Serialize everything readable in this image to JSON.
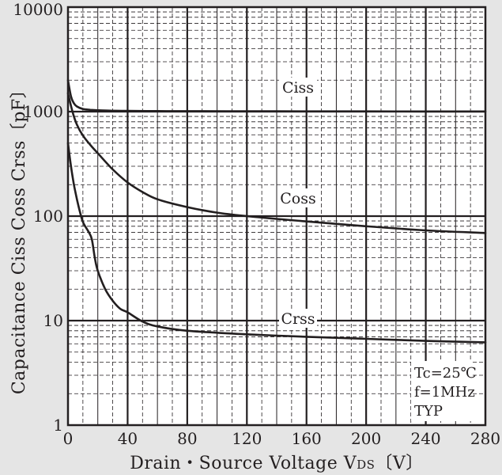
{
  "chart_data": {
    "type": "line",
    "xlabel": "Drain・Source Voltage  V",
    "xlabel_sub": "DS",
    "xlabel_unit": "〔V〕",
    "ylabel": "Capacitance  Ciss Coss Crss〔pF〕",
    "xlim": [
      0,
      280
    ],
    "ylim": [
      1,
      10000
    ],
    "y_scale": "log",
    "grid": true,
    "x_ticks": [
      "0",
      "40",
      "80",
      "120",
      "160",
      "200",
      "240",
      "280"
    ],
    "y_ticks": [
      "1",
      "10",
      "100",
      "1000",
      "10000"
    ],
    "series": [
      {
        "name": "Ciss",
        "x": [
          0,
          2,
          4,
          6,
          10,
          15,
          20,
          30,
          40,
          60,
          80,
          120,
          160,
          200,
          240,
          280
        ],
        "y": [
          2000,
          1400,
          1200,
          1120,
          1060,
          1040,
          1030,
          1020,
          1015,
          1012,
          1010,
          1008,
          1006,
          1005,
          1004,
          1003
        ]
      },
      {
        "name": "Coss",
        "x": [
          0,
          3,
          6,
          10,
          15,
          20,
          30,
          40,
          50,
          60,
          80,
          100,
          120,
          140,
          160,
          200,
          240,
          280
        ],
        "y": [
          1500,
          1000,
          750,
          590,
          480,
          400,
          280,
          210,
          170,
          145,
          122,
          108,
          100,
          94,
          89,
          80,
          73,
          69
        ]
      },
      {
        "name": "Crss",
        "x": [
          0,
          2,
          4,
          6,
          8,
          10,
          12,
          14,
          16,
          18,
          20,
          25,
          30,
          35,
          40,
          50,
          60,
          80,
          120,
          160,
          200,
          240,
          280
        ],
        "y": [
          500,
          300,
          200,
          145,
          110,
          88,
          78,
          70,
          60,
          40,
          30,
          20,
          15.5,
          13,
          12,
          9.8,
          8.8,
          8,
          7.4,
          7,
          6.7,
          6.4,
          6.2
        ]
      }
    ],
    "annotations": [
      "Tc=25℃",
      "f=1MHz",
      "TYP"
    ],
    "colors": {
      "background": "#e5e5e5",
      "plot": "#ffffff",
      "ink": "#231f20"
    }
  }
}
